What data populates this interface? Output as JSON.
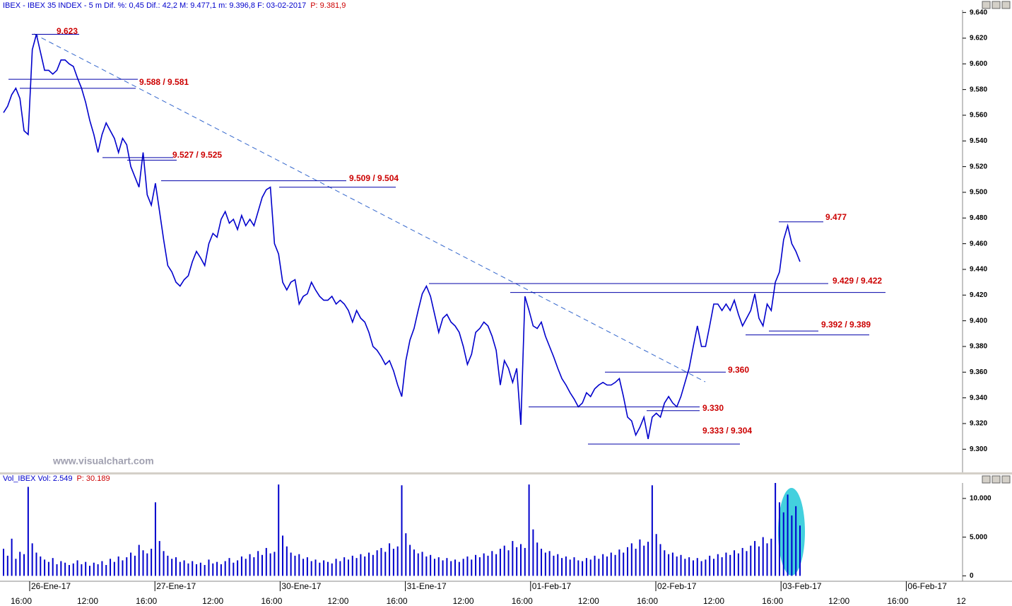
{
  "chart_data": [
    {
      "type": "line",
      "title": "IBEX - IBEX 35 INDEX - 5 m  Dif. %: 0,45  Dif.: 42,2  M: 9.477,1  m: 9.396,8  F: 03-02-2017",
      "last_price": "P: 9.381,9",
      "watermark": "www.visualchart.com",
      "color": "#0000cc",
      "values": [
        9.562,
        9.567,
        9.576,
        9.581,
        9.573,
        9.548,
        9.545,
        9.611,
        9.623,
        9.609,
        9.595,
        9.595,
        9.592,
        9.595,
        9.603,
        9.603,
        9.6,
        9.598,
        9.589,
        9.581,
        9.57,
        9.556,
        9.545,
        9.531,
        9.545,
        9.554,
        9.548,
        9.542,
        9.531,
        9.542,
        9.537,
        9.52,
        9.512,
        9.504,
        9.531,
        9.498,
        9.49,
        9.507,
        9.485,
        9.463,
        9.443,
        9.438,
        9.43,
        9.427,
        9.432,
        9.435,
        9.446,
        9.454,
        9.449,
        9.443,
        9.46,
        9.468,
        9.465,
        9.479,
        9.485,
        9.476,
        9.479,
        9.471,
        9.482,
        9.474,
        9.479,
        9.474,
        9.485,
        9.496,
        9.502,
        9.504,
        9.46,
        9.452,
        9.43,
        9.424,
        9.43,
        9.432,
        9.413,
        9.419,
        9.421,
        9.43,
        9.424,
        9.419,
        9.416,
        9.416,
        9.419,
        9.413,
        9.416,
        9.413,
        9.408,
        9.399,
        9.408,
        9.402,
        9.399,
        9.391,
        9.38,
        9.377,
        9.372,
        9.366,
        9.369,
        9.361,
        9.35,
        9.341,
        9.369,
        9.385,
        9.394,
        9.408,
        9.421,
        9.427,
        9.419,
        9.405,
        9.391,
        9.402,
        9.405,
        9.399,
        9.396,
        9.391,
        9.38,
        9.366,
        9.374,
        9.391,
        9.394,
        9.399,
        9.396,
        9.388,
        9.377,
        9.35,
        9.369,
        9.363,
        9.352,
        9.363,
        9.319,
        9.419,
        9.408,
        9.396,
        9.394,
        9.399,
        9.388,
        9.38,
        9.372,
        9.363,
        9.355,
        9.35,
        9.344,
        9.339,
        9.333,
        9.336,
        9.344,
        9.341,
        9.347,
        9.35,
        9.352,
        9.35,
        9.35,
        9.352,
        9.355,
        9.341,
        9.325,
        9.322,
        9.311,
        9.317,
        9.325,
        9.308,
        9.325,
        9.328,
        9.325,
        9.336,
        9.341,
        9.336,
        9.333,
        9.341,
        9.352,
        9.363,
        9.38,
        9.396,
        9.38,
        9.38,
        9.396,
        9.413,
        9.413,
        9.408,
        9.413,
        9.408,
        9.416,
        9.405,
        9.396,
        9.402,
        9.408,
        9.421,
        9.402,
        9.396,
        9.413,
        9.408,
        9.43,
        9.438,
        9.463,
        9.474,
        9.46,
        9.454,
        9.446
      ],
      "ylim": [
        9.282,
        9.642
      ],
      "yticks": [
        {
          "value": 9.3,
          "label": "9.300"
        },
        {
          "value": 9.32,
          "label": "9.320"
        },
        {
          "value": 9.34,
          "label": "9.340"
        },
        {
          "value": 9.36,
          "label": "9.360"
        },
        {
          "value": 9.38,
          "label": "9.380"
        },
        {
          "value": 9.4,
          "label": "9.400"
        },
        {
          "value": 9.42,
          "label": "9.420"
        },
        {
          "value": 9.44,
          "label": "9.440"
        },
        {
          "value": 9.46,
          "label": "9.460"
        },
        {
          "value": 9.48,
          "label": "9.480"
        },
        {
          "value": 9.5,
          "label": "9.500"
        },
        {
          "value": 9.52,
          "label": "9.520"
        },
        {
          "value": 9.54,
          "label": "9.540"
        },
        {
          "value": 9.56,
          "label": "9.560"
        },
        {
          "value": 9.58,
          "label": "9.580"
        },
        {
          "value": 9.6,
          "label": "9.600"
        },
        {
          "value": 9.62,
          "label": "9.620"
        },
        {
          "value": 9.64,
          "label": "9.640"
        }
      ],
      "annotations": [
        {
          "label": "9.623",
          "levels": [
            9.623
          ]
        },
        {
          "label": "9.588 / 9.581",
          "levels": [
            9.588,
            9.581
          ]
        },
        {
          "label": "9.527 / 9.525",
          "levels": [
            9.527,
            9.525
          ]
        },
        {
          "label": "9.509 / 9.504",
          "levels": [
            9.509,
            9.504
          ]
        },
        {
          "label": "9.477",
          "levels": [
            9.477
          ]
        },
        {
          "label": "9.429 / 9.422",
          "levels": [
            9.429,
            9.422
          ]
        },
        {
          "label": "9.392 / 9.389",
          "levels": [
            9.392,
            9.389
          ]
        },
        {
          "label": "9.360",
          "levels": [
            9.36
          ]
        },
        {
          "label": "9.330",
          "levels": [
            9.33
          ]
        },
        {
          "label": "9.333 / 9.304",
          "levels": [
            9.333,
            9.304
          ]
        }
      ],
      "date_labels": [
        "26-Ene-17",
        "27-Ene-17",
        "30-Ene-17",
        "31-Ene-17",
        "01-Feb-17",
        "02-Feb-17",
        "03-Feb-17",
        "06-Feb-17"
      ],
      "time_labels": [
        "16:00",
        "12:00",
        "16:00",
        "12:00",
        "16:00",
        "12:00",
        "16:00",
        "12:00",
        "16:00",
        "12:00",
        "16:00",
        "12:00",
        "16:00",
        "12:00",
        "16:00",
        "12"
      ]
    },
    {
      "type": "bar",
      "title": "Vol_IBEX Vol: 2.549",
      "last_price": "P: 30.189",
      "color": "#0000cc",
      "values": [
        3500,
        2600,
        4800,
        2200,
        3100,
        2800,
        11500,
        4200,
        3000,
        2500,
        2100,
        1800,
        2300,
        1500,
        1900,
        1700,
        1400,
        1600,
        2000,
        1500,
        1800,
        1300,
        1700,
        1500,
        1900,
        1400,
        2200,
        1800,
        2500,
        2000,
        2400,
        3000,
        2600,
        4000,
        3300,
        2900,
        3500,
        9500,
        4500,
        3200,
        2600,
        2200,
        2400,
        1800,
        2000,
        1600,
        1900,
        1500,
        1700,
        1400,
        2100,
        1600,
        1800,
        1500,
        1900,
        2300,
        1700,
        2000,
        2500,
        2200,
        2800,
        2400,
        3200,
        2700,
        3600,
        2900,
        3100,
        11800,
        5200,
        3800,
        3000,
        2600,
        2800,
        2200,
        2400,
        1900,
        2100,
        1700,
        2000,
        1800,
        1600,
        2200,
        1900,
        2400,
        2100,
        2600,
        2300,
        2800,
        2500,
        3000,
        2700,
        3300,
        3600,
        3100,
        4200,
        3500,
        3800,
        11700,
        5500,
        4000,
        3400,
        2900,
        3100,
        2500,
        2700,
        2200,
        2400,
        2000,
        2300,
        1900,
        2100,
        1800,
        2200,
        2500,
        2100,
        2700,
        2400,
        2900,
        2600,
        3200,
        2800,
        3500,
        3900,
        3300,
        4500,
        3700,
        4100,
        3600,
        11800,
        6000,
        4300,
        3500,
        3000,
        3200,
        2600,
        2800,
        2300,
        2500,
        2100,
        2400,
        2000,
        1900,
        2300,
        2100,
        2600,
        2200,
        2800,
        2500,
        3000,
        2700,
        3400,
        3000,
        3700,
        4200,
        3500,
        4700,
        3900,
        4400,
        11700,
        5400,
        4100,
        3300,
        2800,
        3000,
        2500,
        2700,
        2200,
        2400,
        2000,
        2300,
        1900,
        2100,
        2600,
        2200,
        2800,
        2400,
        3000,
        2700,
        3300,
        2900,
        3600,
        3200,
        3900,
        4500,
        3800,
        5000,
        4200,
        4800,
        12000,
        9500,
        8200,
        10500,
        7800,
        9000,
        6500
      ],
      "ylim": [
        -700,
        12000
      ],
      "yticks": [
        0,
        {
          "value": 5000,
          "label": "5.000"
        },
        {
          "value": 10000,
          "label": "10.000"
        }
      ]
    }
  ]
}
